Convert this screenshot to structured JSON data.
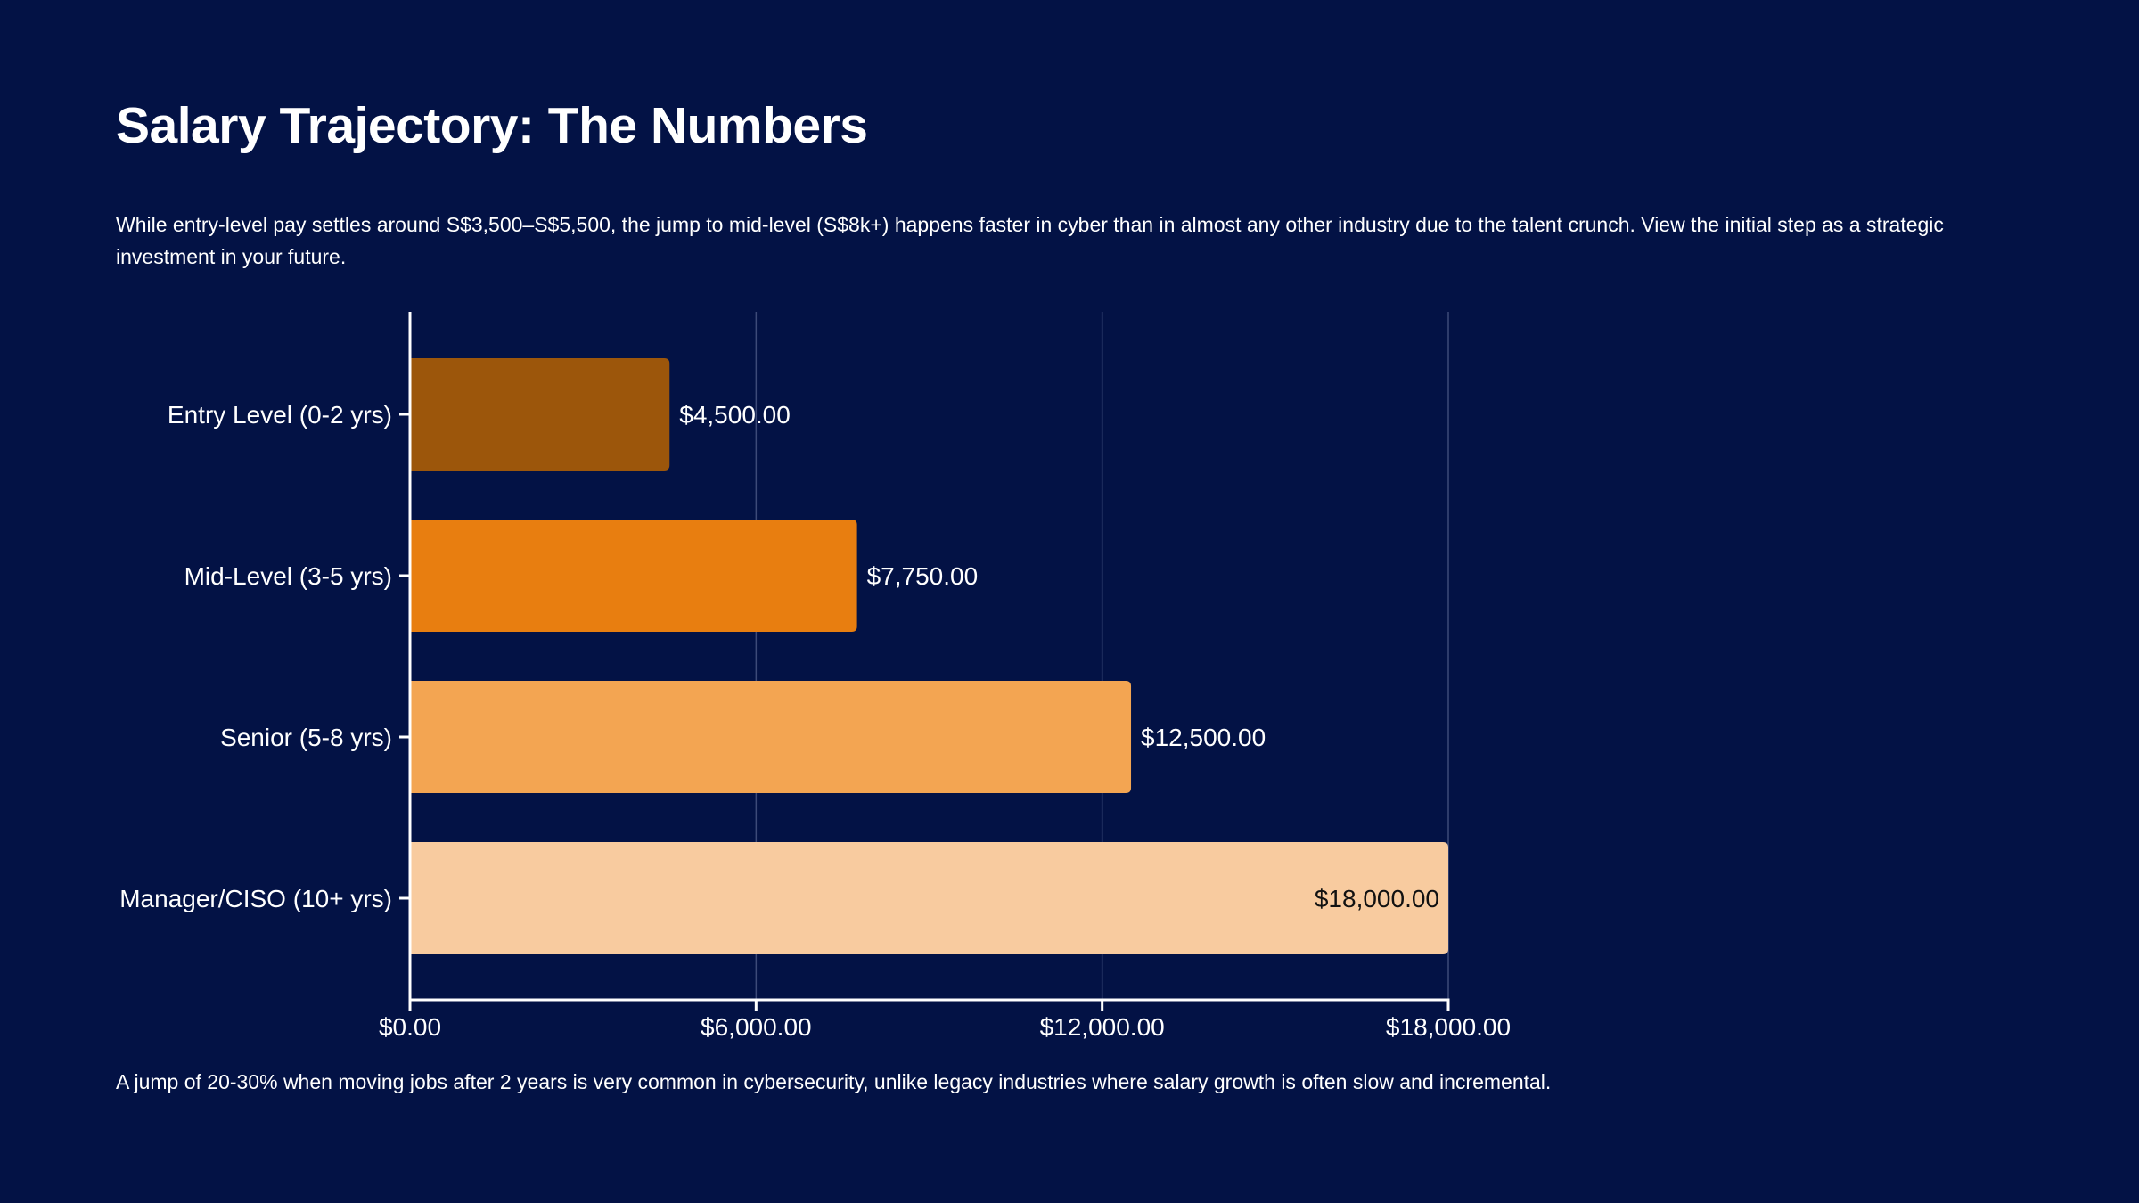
{
  "slide": {
    "title": "Salary Trajectory: The Numbers",
    "subtitle": "While entry-level pay settles around S$3,500–S$5,500, the jump to mid-level (S$8k+) happens faster in cyber than in almost any other industry due to the talent crunch. View the initial step as a strategic investment in your future.",
    "footnote": "A jump of 20-30% when moving jobs after 2 years is very common in cybersecurity, unlike legacy industries where salary growth is often slow and incremental."
  },
  "colors": {
    "background": "#031245",
    "axis": "#ffffff",
    "grid": "#3d4a78",
    "label_light": "#ffffff",
    "label_dark": "#111111"
  },
  "chart_data": {
    "type": "bar",
    "orientation": "horizontal",
    "title": "",
    "xlabel": "",
    "ylabel": "",
    "categories": [
      "Entry Level (0-2 yrs)",
      "Mid-Level (3-5 yrs)",
      "Senior (5-8 yrs)",
      "Manager/CISO (10+ yrs)"
    ],
    "values": [
      4500,
      7750,
      12500,
      18000
    ],
    "value_labels": [
      "$4,500.00",
      "$7,750.00",
      "$12,500.00",
      "$18,000.00"
    ],
    "bar_colors": [
      "#9c560b",
      "#e87e10",
      "#f3a552",
      "#f8cb9f"
    ],
    "xlim": [
      0,
      18000
    ],
    "x_ticks": [
      0,
      6000,
      12000,
      18000
    ],
    "x_tick_labels": [
      "$0.00",
      "$6,000.00",
      "$12,000.00",
      "$18,000.00"
    ],
    "grid": true,
    "legend": "none"
  }
}
